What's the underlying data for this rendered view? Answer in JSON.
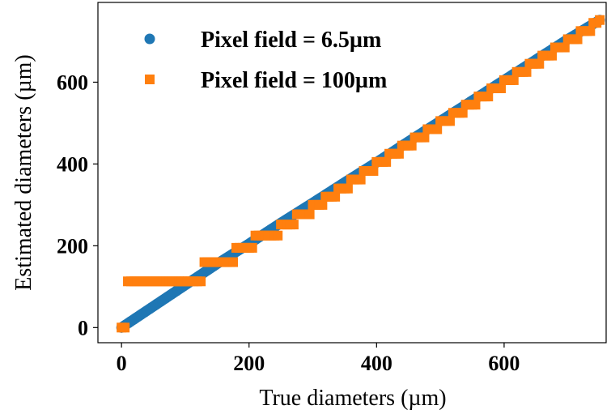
{
  "chart_data": {
    "type": "scatter",
    "title": "",
    "xlabel": "True diameters (µm)",
    "ylabel": "Estimated diameters (µm)",
    "xlim": [
      -37,
      760
    ],
    "ylim": [
      -37,
      795
    ],
    "xticks": [
      0,
      200,
      400,
      600
    ],
    "yticks": [
      0,
      200,
      400,
      600
    ],
    "grid": false,
    "legend_position": "top-left",
    "series": [
      {
        "name": "Pixel field = 6.5µm",
        "color": "#1f77b4",
        "marker": "circle",
        "x": [
          0,
          50,
          100,
          150,
          200,
          250,
          300,
          350,
          400,
          450,
          500,
          550,
          600,
          650,
          700,
          750
        ],
        "y": [
          0,
          52,
          104,
          156,
          205,
          256,
          305,
          355,
          404,
          455,
          505,
          555,
          605,
          655,
          705,
          752
        ]
      },
      {
        "name": "Pixel field = 100µm",
        "color": "#ff7f0e",
        "marker": "square",
        "x": [
          0,
          10,
          30,
          50,
          70,
          90,
          113,
          130,
          150,
          165,
          180,
          195,
          210,
          230,
          250,
          275,
          300,
          320,
          340,
          360,
          380,
          400,
          420,
          440,
          460,
          480,
          500,
          520,
          540,
          560,
          580,
          600,
          620,
          640,
          660,
          680,
          700,
          720,
          740,
          750
        ],
        "y": [
          0,
          113,
          113,
          113,
          113,
          113,
          113,
          160,
          160,
          160,
          195,
          195,
          225,
          225,
          252,
          277,
          300,
          320,
          340,
          362,
          383,
          405,
          425,
          445,
          465,
          485,
          505,
          525,
          545,
          565,
          585,
          605,
          625,
          645,
          665,
          685,
          705,
          725,
          745,
          752
        ]
      }
    ]
  }
}
